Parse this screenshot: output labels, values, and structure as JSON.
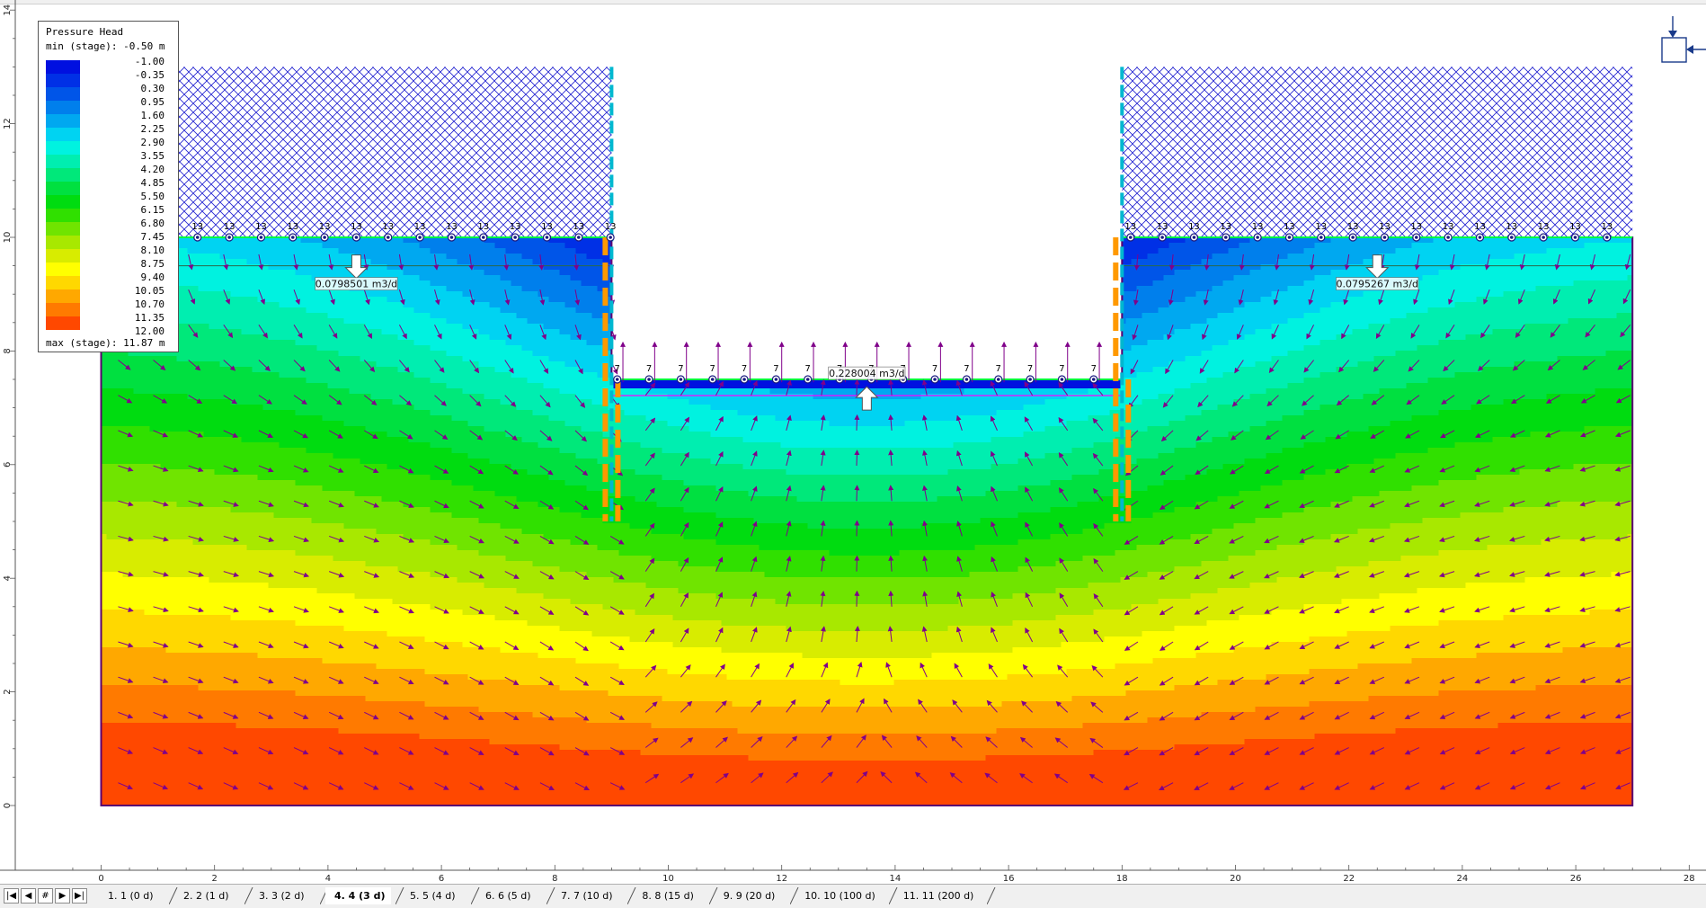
{
  "legend": {
    "title": "Pressure Head",
    "min_text": "min (stage): -0.50 m",
    "max_text": "max (stage): 11.87 m",
    "levels": [
      {
        "value": "-1.00",
        "color": "#0010e0"
      },
      {
        "value": "-0.35",
        "color": "#0030e6"
      },
      {
        "value": "0.30",
        "color": "#0055e8"
      },
      {
        "value": "0.95",
        "color": "#007fec"
      },
      {
        "value": "1.60",
        "color": "#00a8f0"
      },
      {
        "value": "2.25",
        "color": "#00d3f2"
      },
      {
        "value": "2.90",
        "color": "#00f2e0"
      },
      {
        "value": "3.55",
        "color": "#00eeb0"
      },
      {
        "value": "4.20",
        "color": "#00e87a"
      },
      {
        "value": "4.85",
        "color": "#00e040"
      },
      {
        "value": "5.50",
        "color": "#00dc10"
      },
      {
        "value": "6.15",
        "color": "#30e000"
      },
      {
        "value": "6.80",
        "color": "#70e400"
      },
      {
        "value": "7.45",
        "color": "#a8e800"
      },
      {
        "value": "8.10",
        "color": "#d8ec00"
      },
      {
        "value": "8.75",
        "color": "#ffff00"
      },
      {
        "value": "9.40",
        "color": "#ffd800"
      },
      {
        "value": "10.05",
        "color": "#ffa800"
      },
      {
        "value": "10.70",
        "color": "#ff7a00"
      },
      {
        "value": "11.35",
        "color": "#ff4800"
      },
      {
        "value": "12.00",
        "color": "#ff0000"
      }
    ]
  },
  "model": {
    "ground_left": 0,
    "ground_right": 27,
    "bottom_y": 0,
    "surface_y": 10,
    "fill_top_y": 13,
    "excavation_left_x": 9,
    "excavation_right_x": 18,
    "excavation_floor_y": 7.5,
    "wall_bottom_y": 5,
    "water_line_y": 9.5,
    "boundary_labels": {
      "left": "13",
      "right": "13",
      "floor": "7"
    },
    "flux_labels": {
      "left": "0.0798501 m3/d",
      "right": "0.0795267 m3/d",
      "center": "0.228004 m3/d"
    }
  },
  "axes": {
    "x_ticks": [
      "0",
      "2",
      "4",
      "6",
      "8",
      "10",
      "12",
      "14",
      "16",
      "18",
      "20",
      "22",
      "24",
      "26",
      "28"
    ],
    "y_ticks": [
      "0",
      "2",
      "4",
      "6",
      "8",
      "10",
      "12",
      "14"
    ]
  },
  "colors": {
    "fill_hatch": "#2020d0",
    "arrow": "#80008a",
    "wall": "#ff9900",
    "wall_accent": "#00b8d0",
    "boundary_dot": "#1a1a80",
    "accent_green": "#00ff40"
  },
  "stage_tabs": [
    {
      "label": "1. 1 (0 d)",
      "active": false
    },
    {
      "label": "2. 2 (1 d)",
      "active": false
    },
    {
      "label": "3. 3 (2 d)",
      "active": false
    },
    {
      "label": "4. 4 (3 d)",
      "active": true
    },
    {
      "label": "5. 5 (4 d)",
      "active": false
    },
    {
      "label": "6. 6 (5 d)",
      "active": false
    },
    {
      "label": "7. 7 (10 d)",
      "active": false
    },
    {
      "label": "8. 8 (15 d)",
      "active": false
    },
    {
      "label": "9. 9 (20 d)",
      "active": false
    },
    {
      "label": "10. 10 (100 d)",
      "active": false
    },
    {
      "label": "11. 11 (200 d)",
      "active": false
    }
  ],
  "nav_buttons": [
    "first",
    "prev",
    "stage-number",
    "next",
    "last"
  ],
  "nav_glyphs": [
    "|◀",
    "◀",
    "#",
    "▶",
    "▶|"
  ]
}
